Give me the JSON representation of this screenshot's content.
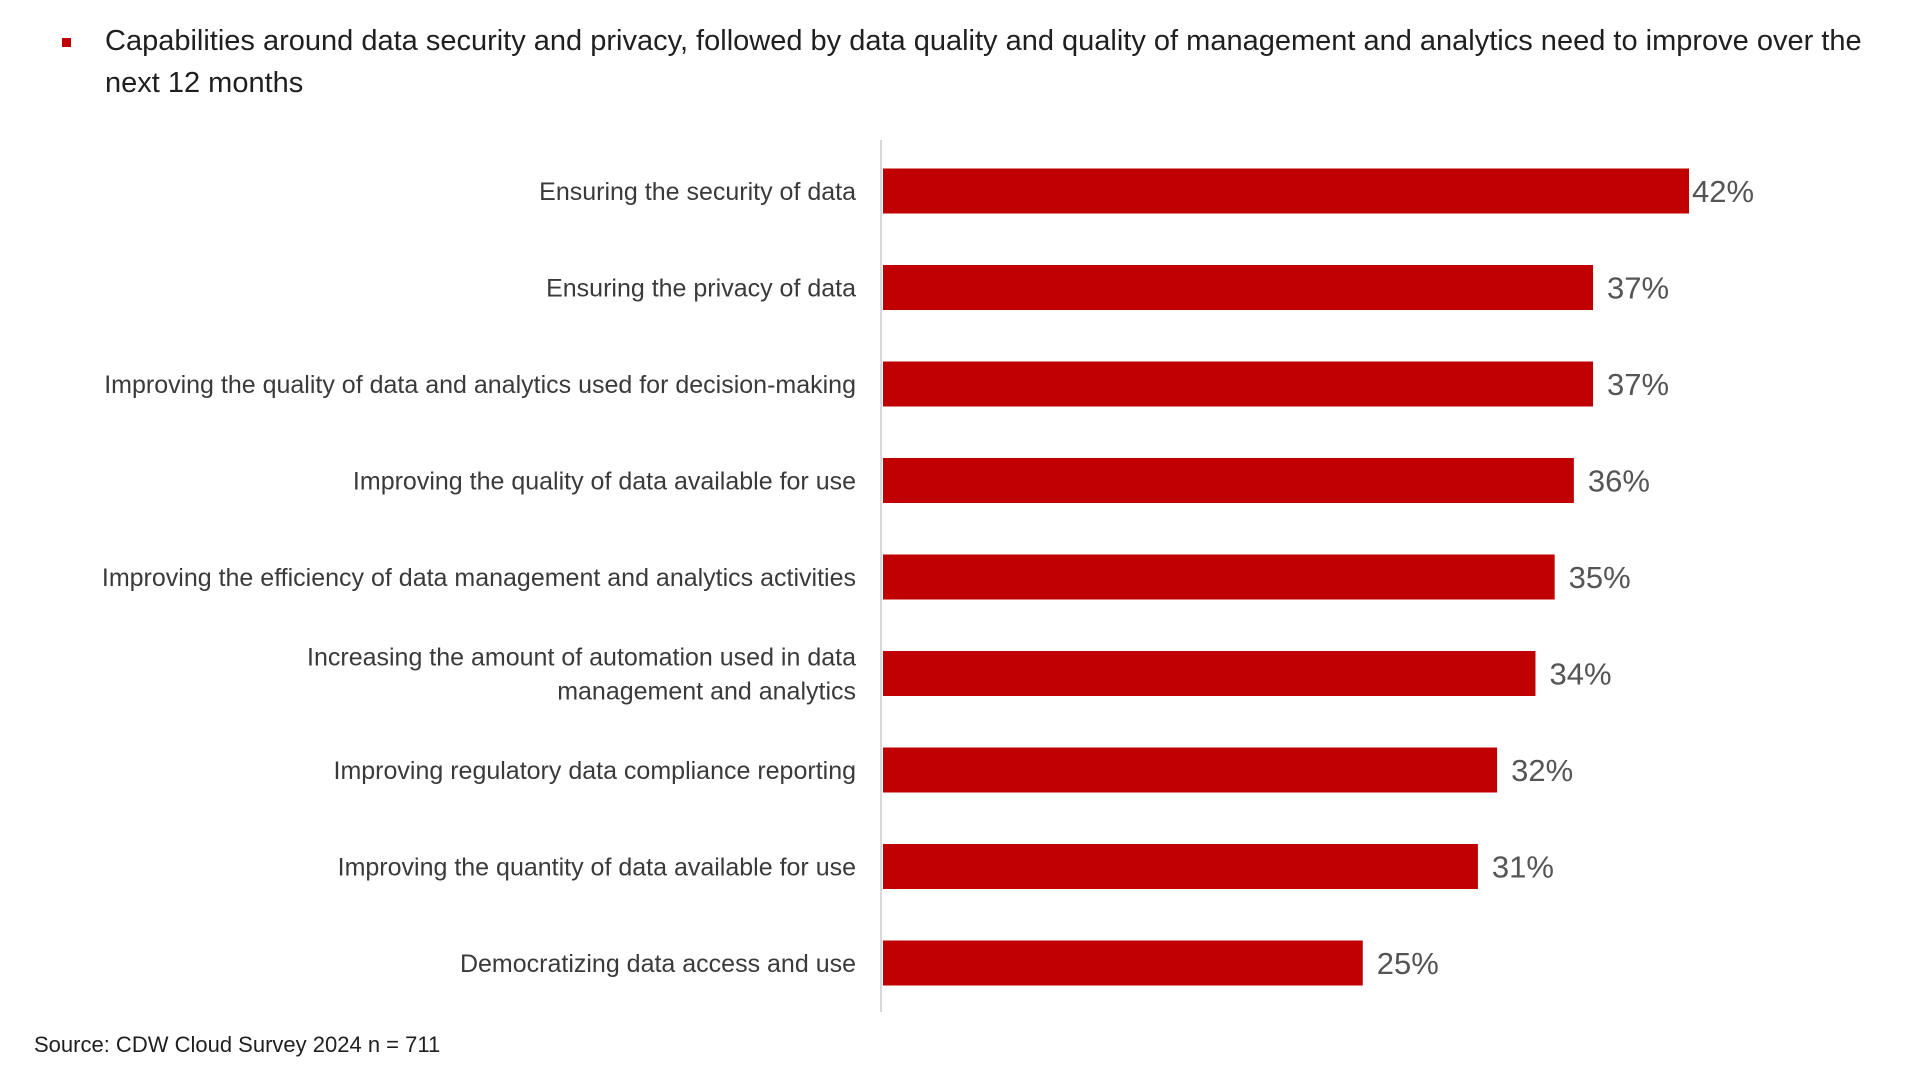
{
  "bullet": {
    "text": "Capabilities around data security and privacy, followed by data quality and quality of management and analytics need to improve over the next 12 months"
  },
  "chart_data": {
    "type": "bar",
    "orientation": "horizontal",
    "categories": [
      "Ensuring the security of data",
      "Ensuring the privacy of data",
      "Improving the quality of data and analytics used for decision-making",
      "Improving the quality of data available for use",
      "Improving the efficiency of data management and analytics activities",
      "Increasing the amount of automation used in data management and analytics",
      "Improving regulatory data compliance reporting",
      "Improving the quantity of data available for use",
      "Democratizing data access and use"
    ],
    "category_lines": [
      [
        "Ensuring the security of data"
      ],
      [
        "Ensuring the privacy of data"
      ],
      [
        "Improving the quality of data and analytics used for decision-making"
      ],
      [
        "Improving the quality of data available for use"
      ],
      [
        "Improving the efficiency of data management and analytics activities"
      ],
      [
        "Increasing the amount of automation used in data",
        "management and analytics"
      ],
      [
        "Improving regulatory data compliance reporting"
      ],
      [
        "Improving the quantity of data available for use"
      ],
      [
        "Democratizing data access and use"
      ]
    ],
    "values": [
      42,
      37,
      37,
      36,
      35,
      34,
      32,
      31,
      25
    ],
    "value_labels": [
      "42%",
      "37%",
      "37%",
      "36%",
      "35%",
      "34%",
      "32%",
      "31%",
      "25%"
    ],
    "xlim": [
      0,
      50
    ],
    "bar_color": "#c00000",
    "grid": false,
    "title": "",
    "xlabel": "",
    "ylabel": ""
  },
  "source": {
    "text": "Source: CDW Cloud Survey 2024 n = 711"
  }
}
